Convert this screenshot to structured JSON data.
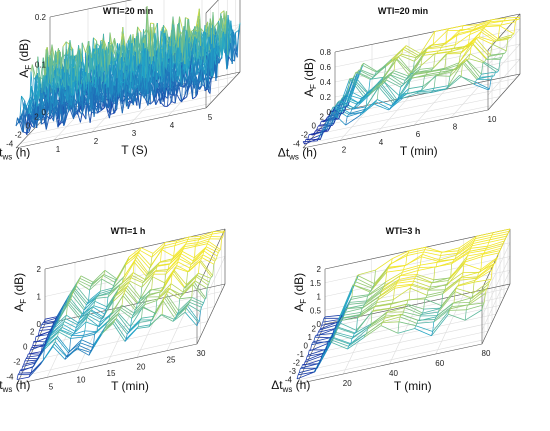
{
  "colors": {
    "low": "#1a1a9e",
    "mid": "#22a6c9",
    "high": "#f2e62a",
    "axis": "#555555",
    "grid": "#dddddd"
  },
  "chart_data": [
    {
      "type": "surface",
      "title": "WTI=20 min",
      "xlabel": "T (S)",
      "ylabel": "Δt_ws (h)",
      "zlabel": "A_F (dB)",
      "xlim": [
        0,
        5
      ],
      "ylim": [
        -5,
        3
      ],
      "zlim": [
        0,
        0.2
      ],
      "x_ticks": [
        "1",
        "2",
        "3",
        "4",
        "5"
      ],
      "y_ticks": [
        "2",
        "0",
        "-2",
        "-4"
      ],
      "z_ticks": [
        "0",
        "0.1",
        "0.2"
      ],
      "surface": {
        "nx": 60,
        "ny": 26,
        "peak": 0.17,
        "base": 0.02,
        "style": "noise"
      }
    },
    {
      "type": "surface",
      "title": "WTI=20 min",
      "xlabel": "T (min)",
      "ylabel": "Δt_ws (h)",
      "zlabel": "A_F (dB)",
      "xlim": [
        0,
        10
      ],
      "ylim": [
        -5,
        3
      ],
      "zlim": [
        0,
        0.8
      ],
      "x_ticks": [
        "2",
        "4",
        "6",
        "8",
        "10"
      ],
      "y_ticks": [
        "2",
        "0",
        "-2",
        "-4"
      ],
      "z_ticks": [
        "0",
        "0.2",
        "0.4",
        "0.6",
        "0.8"
      ],
      "surface": {
        "nx": 14,
        "ny": 22,
        "peak": 0.75,
        "base": 0.05,
        "style": "steps"
      }
    },
    {
      "type": "surface",
      "title": "WTI=1 h",
      "xlabel": "T (min)",
      "ylabel": "Δt_ws (h)",
      "zlabel": "A_F (dB)",
      "xlim": [
        0,
        30
      ],
      "ylim": [
        -5,
        3
      ],
      "zlim": [
        0,
        2
      ],
      "x_ticks": [
        "5",
        "10",
        "15",
        "20",
        "25",
        "30"
      ],
      "y_ticks": [
        "2",
        "0",
        "-2",
        "-4"
      ],
      "z_ticks": [
        "0",
        "1",
        "2"
      ],
      "surface": {
        "nx": 16,
        "ny": 26,
        "peak": 1.9,
        "base": 0.2,
        "style": "steps"
      }
    },
    {
      "type": "surface",
      "title": "WTI=3 h",
      "xlabel": "T (min)",
      "ylabel": "Δt_ws (h)",
      "zlabel": "A_F (dB)",
      "xlim": [
        0,
        90
      ],
      "ylim": [
        -5,
        3
      ],
      "zlim": [
        0,
        2
      ],
      "x_ticks": [
        "20",
        "40",
        "60",
        "80"
      ],
      "y_ticks": [
        "2",
        "1",
        "0",
        "-1",
        "-2",
        "-3",
        "-4"
      ],
      "z_ticks": [
        "0",
        "0.5",
        "1",
        "1.5",
        "2"
      ],
      "surface": {
        "nx": 12,
        "ny": 26,
        "peak": 1.9,
        "base": 0.3,
        "style": "steps"
      }
    }
  ]
}
